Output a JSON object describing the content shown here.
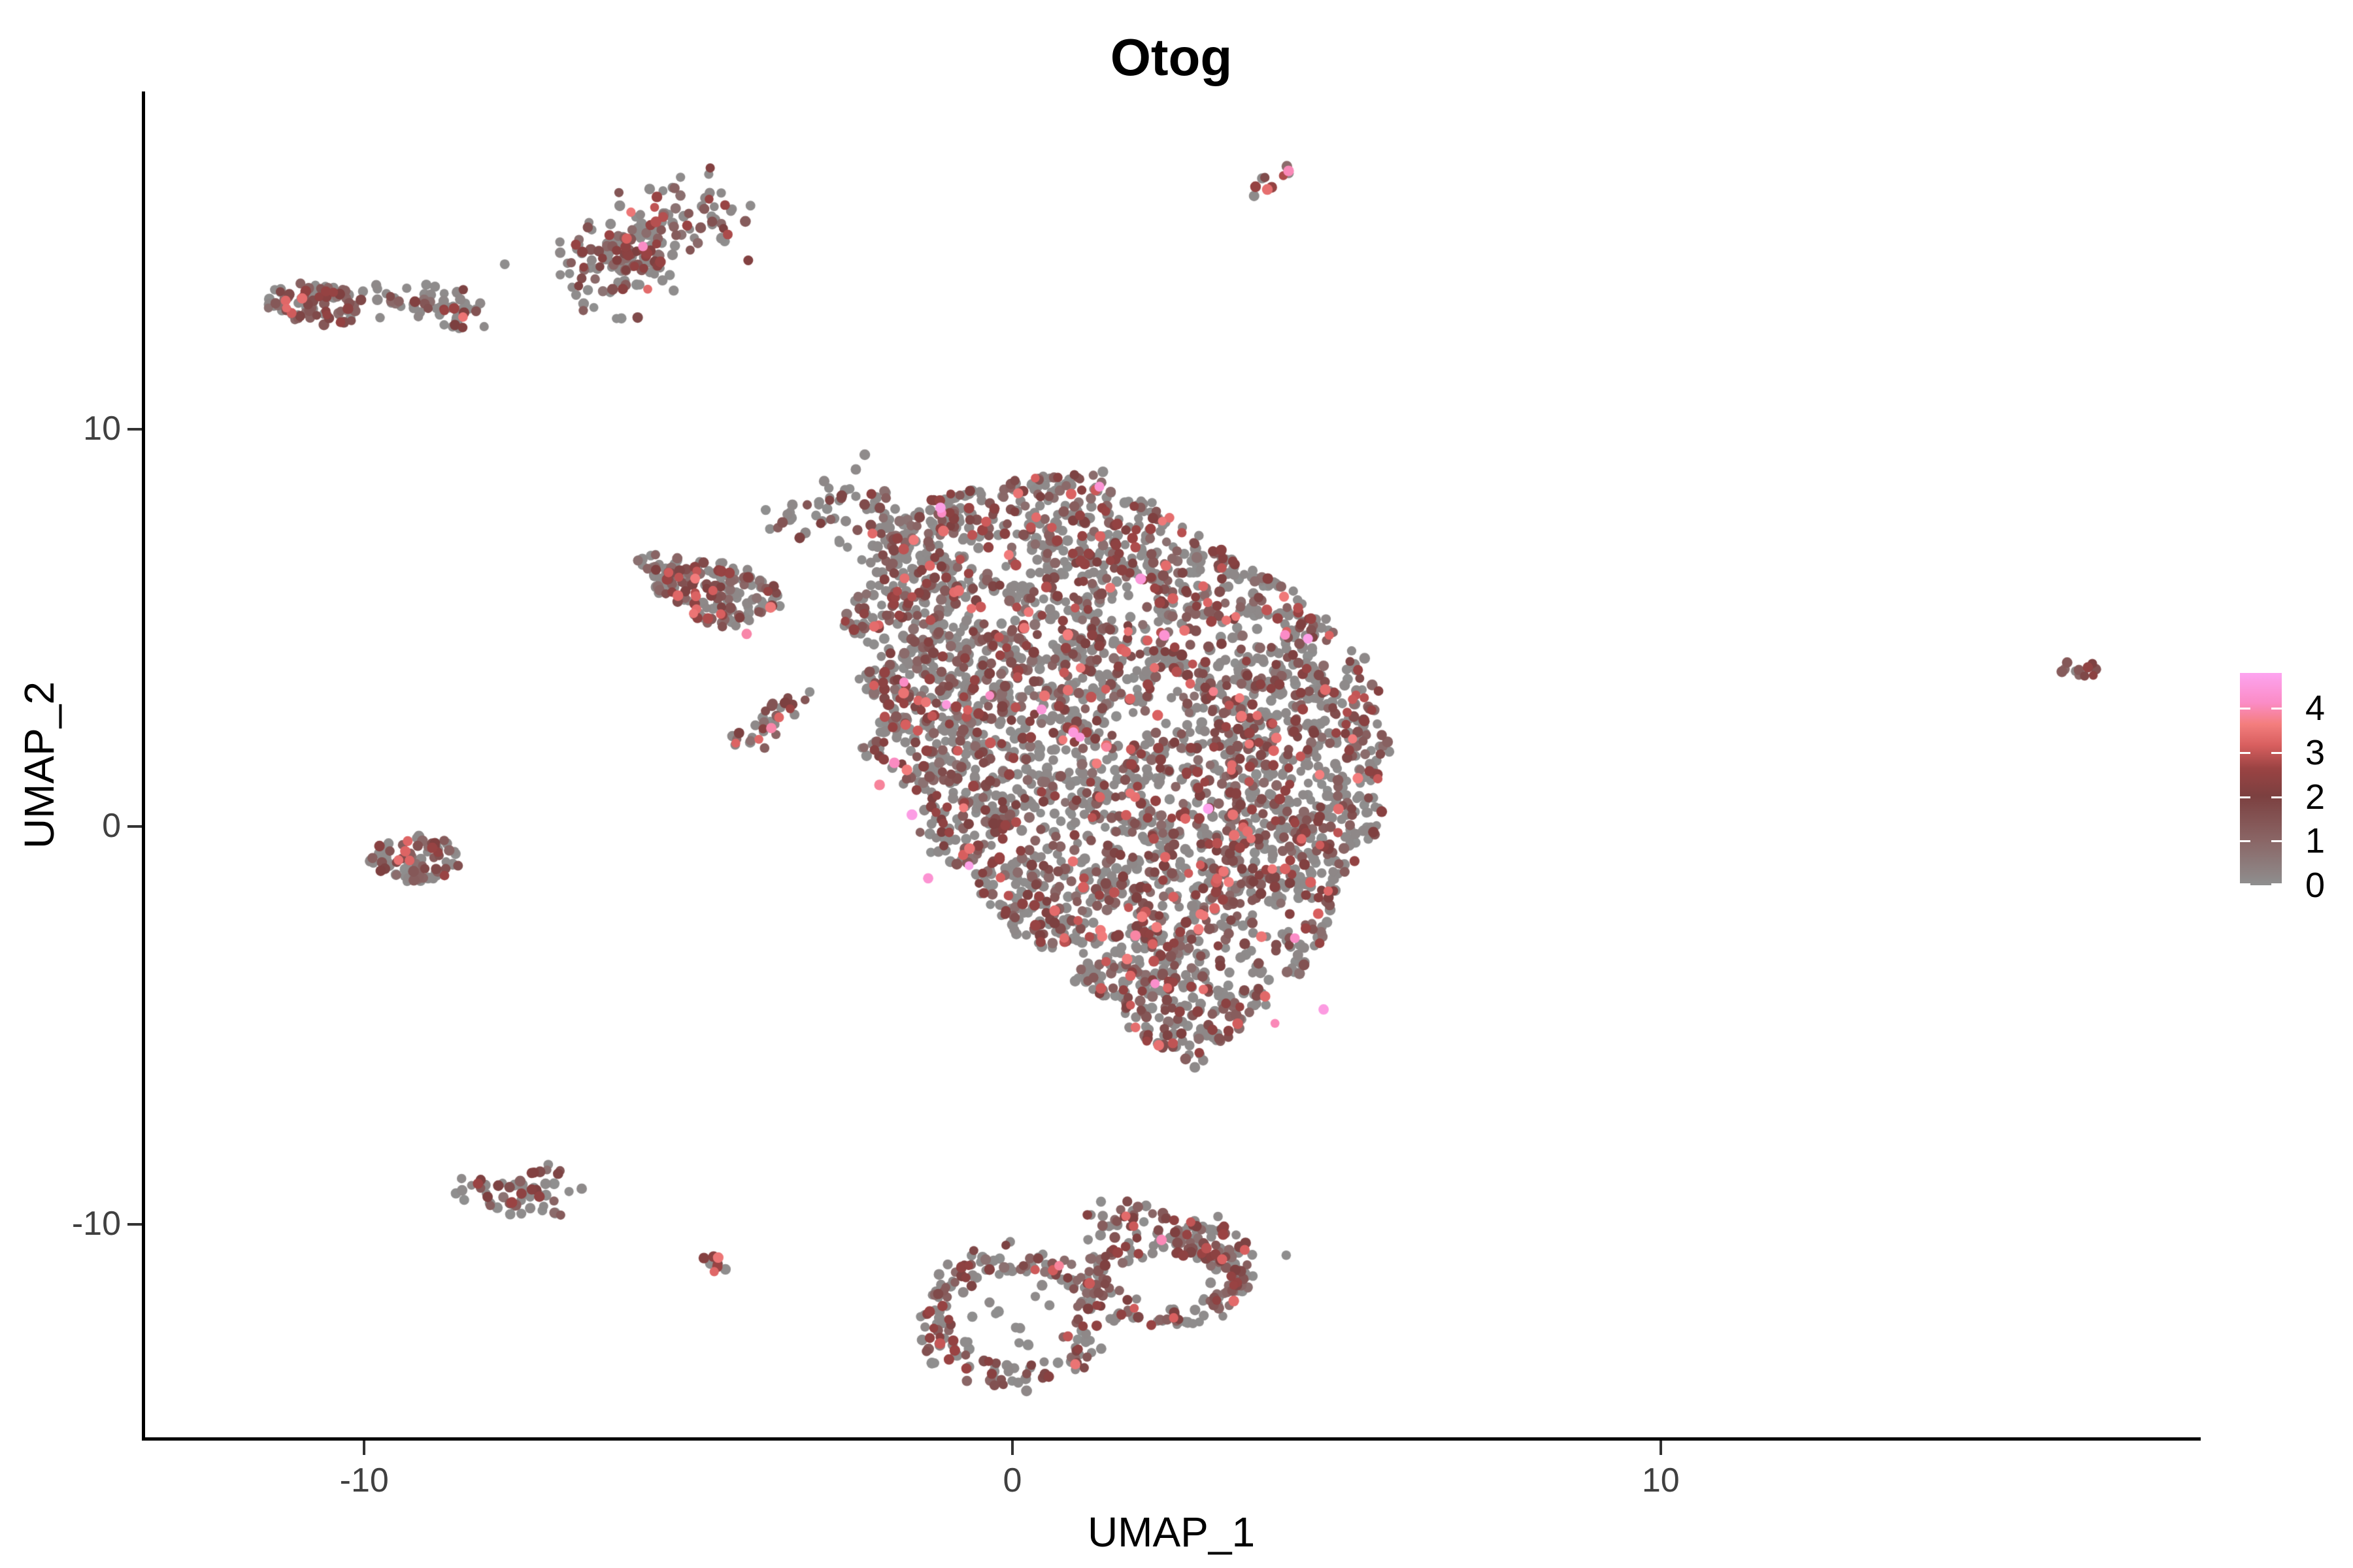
{
  "title": "Otog",
  "axes": {
    "x_label": "UMAP_1",
    "y_label": "UMAP_2",
    "x_ticks": [
      -10,
      0,
      10
    ],
    "y_ticks": [
      -10,
      0,
      10
    ]
  },
  "legend": {
    "ticks": [
      0,
      1,
      2,
      3,
      4
    ],
    "max_value": 4.8
  },
  "colors": {
    "background": "#ffffff",
    "axis": "#000000",
    "tick_text": "#404040",
    "gradient_stops": [
      [
        0.0,
        "#8f8f8f"
      ],
      [
        0.21,
        "#8a6666"
      ],
      [
        0.42,
        "#7c4040"
      ],
      [
        0.55,
        "#9a4343"
      ],
      [
        0.66,
        "#d85f5f"
      ],
      [
        0.76,
        "#f47e7e"
      ],
      [
        0.86,
        "#fb8cc6"
      ],
      [
        1.0,
        "#fda4f0"
      ]
    ]
  },
  "chart_data": {
    "type": "scatter",
    "title": "Otog",
    "xlabel": "UMAP_1",
    "ylabel": "UMAP_2",
    "xlim": [
      -13.4,
      18.3
    ],
    "ylim": [
      -15.4,
      18.5
    ],
    "legend_title_values": "expression 0 to 4.8",
    "grid": false,
    "point_radius_px": 7.5,
    "value_classes": {
      "gray": [
        0.0,
        0.04
      ],
      "low": [
        0.14,
        0.34
      ],
      "mid": [
        0.34,
        0.55
      ],
      "high": [
        0.58,
        0.76
      ],
      "vhigh": [
        0.8,
        1.0
      ]
    },
    "default_mix": {
      "gray": 0.55,
      "low": 0.22,
      "mid": 0.17,
      "high": 0.055,
      "vhigh": 0.005
    },
    "clusters": [
      {
        "name": "top-left-tip",
        "kind": "ellipse",
        "cx": -10.75,
        "cy": 13.15,
        "rx": 0.8,
        "ry": 0.52,
        "rot": -8,
        "n": 95,
        "mix": {
          "gray": 0.38,
          "low": 0.3,
          "mid": 0.26,
          "high": 0.06,
          "vhigh": 0
        },
        "accents": [
          [
            -11.2,
            13.05,
            0.7
          ]
        ]
      },
      {
        "name": "top-left-band",
        "kind": "band",
        "pts": [
          [
            -9.9,
            13.35
          ],
          [
            -9.3,
            13.2
          ],
          [
            -8.7,
            12.95
          ],
          [
            -8.1,
            13.0
          ]
        ],
        "w": 0.22,
        "n": 62,
        "mix": {
          "gray": 0.72,
          "low": 0.18,
          "mid": 0.09,
          "high": 0.01,
          "vhigh": 0
        }
      },
      {
        "name": "top-crescent-arc",
        "kind": "band",
        "pts": [
          [
            -6.6,
            13.35
          ],
          [
            -6.25,
            13.75
          ],
          [
            -5.95,
            14.3
          ],
          [
            -5.55,
            14.85
          ],
          [
            -5.0,
            15.35
          ],
          [
            -4.5,
            15.7
          ]
        ],
        "w": 0.5,
        "n": 150,
        "mix": {
          "gray": 0.5,
          "low": 0.25,
          "mid": 0.2,
          "high": 0.05,
          "vhigh": 0
        },
        "accents": [
          [
            -5.7,
            14.6,
            0.86
          ],
          [
            -5.95,
            14.8,
            0.66
          ]
        ]
      },
      {
        "name": "top-crescent-lobe",
        "kind": "ellipse",
        "cx": -5.85,
        "cy": 14.45,
        "rx": 0.55,
        "ry": 0.5,
        "rot": 0,
        "n": 55,
        "mix": {
          "gray": 0.48,
          "low": 0.27,
          "mid": 0.22,
          "high": 0.03,
          "vhigh": 0
        }
      },
      {
        "name": "top-streak",
        "kind": "band",
        "pts": [
          [
            3.78,
            15.9
          ],
          [
            4.35,
            16.8
          ]
        ],
        "w": 0.13,
        "n": 9,
        "mix": {
          "gray": 0.4,
          "low": 0.25,
          "mid": 0.3,
          "high": 0.05,
          "vhigh": 0
        },
        "accents": [
          [
            4.26,
            16.5,
            0.84
          ]
        ]
      },
      {
        "name": "arm-cluster",
        "kind": "ellipse",
        "cx": -4.55,
        "cy": 5.85,
        "rx": 1.05,
        "ry": 0.78,
        "rot": -28,
        "n": 165,
        "mix": {
          "gray": 0.5,
          "low": 0.25,
          "mid": 0.2,
          "high": 0.05,
          "vhigh": 0
        },
        "accents": [
          [
            -4.1,
            4.85,
            0.82
          ],
          [
            -4.5,
            5.35,
            0.66
          ]
        ]
      },
      {
        "name": "arm-tip",
        "kind": "ellipse",
        "cx": -5.4,
        "cy": 6.55,
        "rx": 0.42,
        "ry": 0.3,
        "rot": -30,
        "n": 28,
        "mix": {
          "gray": 0.5,
          "low": 0.28,
          "mid": 0.22,
          "high": 0,
          "vhigh": 0
        }
      },
      {
        "name": "hook",
        "kind": "band",
        "pts": [
          [
            -3.35,
            7.25
          ],
          [
            -3.1,
            7.95
          ],
          [
            -2.65,
            8.55
          ],
          [
            -2.2,
            8.5
          ],
          [
            -1.95,
            7.95
          ],
          [
            -2.0,
            7.3
          ],
          [
            -2.3,
            6.85
          ]
        ],
        "w": 0.28,
        "n": 62,
        "mix": {
          "gray": 0.68,
          "low": 0.2,
          "mid": 0.11,
          "high": 0.01,
          "vhigh": 0
        }
      },
      {
        "name": "mini-streak",
        "kind": "band",
        "pts": [
          [
            -4.15,
            1.95
          ],
          [
            -3.25,
            3.5
          ]
        ],
        "w": 0.2,
        "n": 30,
        "mix": {
          "gray": 0.35,
          "low": 0.3,
          "mid": 0.3,
          "high": 0.05,
          "vhigh": 0
        },
        "accents": [
          [
            -3.6,
            2.75,
            0.68
          ],
          [
            -3.72,
            2.48,
            0.82
          ]
        ]
      },
      {
        "name": "main-blob",
        "kind": "polygon",
        "pts": [
          [
            -2.65,
            5.1
          ],
          [
            -2.1,
            6.3
          ],
          [
            -2.3,
            7.3
          ],
          [
            -1.6,
            8.1
          ],
          [
            -0.6,
            8.5
          ],
          [
            0.5,
            8.8
          ],
          [
            1.3,
            8.85
          ],
          [
            1.9,
            8.3
          ],
          [
            2.6,
            7.6
          ],
          [
            3.3,
            6.9
          ],
          [
            4.1,
            6.1
          ],
          [
            4.8,
            5.3
          ],
          [
            5.35,
            4.5
          ],
          [
            5.7,
            3.6
          ],
          [
            5.6,
            2.7
          ],
          [
            5.85,
            1.9
          ],
          [
            5.55,
            1.0
          ],
          [
            5.75,
            0.2
          ],
          [
            5.35,
            -0.6
          ],
          [
            5.0,
            -1.4
          ],
          [
            5.05,
            -2.3
          ],
          [
            4.65,
            -3.2
          ],
          [
            4.1,
            -4.0
          ],
          [
            3.7,
            -4.8
          ],
          [
            3.3,
            -5.6
          ],
          [
            2.7,
            -6.0
          ],
          [
            2.1,
            -5.5
          ],
          [
            1.7,
            -4.6
          ],
          [
            1.1,
            -4.0
          ],
          [
            0.55,
            -3.2
          ],
          [
            0.0,
            -2.6
          ],
          [
            -0.4,
            -1.7
          ],
          [
            -1.0,
            -1.0
          ],
          [
            -1.5,
            -0.3
          ],
          [
            -1.25,
            0.6
          ],
          [
            -1.8,
            1.3
          ],
          [
            -2.3,
            2.1
          ],
          [
            -1.9,
            2.9
          ],
          [
            -2.4,
            3.7
          ],
          [
            -2.0,
            4.4
          ]
        ],
        "n": 3400,
        "mix": null,
        "accents": [
          [
            -0.35,
            3.3,
            0.86
          ],
          [
            0.45,
            2.95,
            0.92
          ],
          [
            -1.55,
            0.3,
            0.96
          ],
          [
            2.2,
            -3.95,
            0.88
          ],
          [
            4.8,
            -4.6,
            0.95
          ],
          [
            1.45,
            2.0,
            0.8
          ],
          [
            3.1,
            3.4,
            0.78
          ],
          [
            0.25,
            5.4,
            0.74
          ],
          [
            -2.05,
            1.05,
            0.8
          ],
          [
            3.4,
            0.3,
            0.72
          ],
          [
            2.9,
            -2.2,
            0.74
          ],
          [
            0.8,
            -2.8,
            0.7
          ],
          [
            1.75,
            4.4,
            0.68
          ],
          [
            -0.9,
            5.9,
            0.7
          ],
          [
            4.6,
            -1.4,
            0.66
          ],
          [
            -1.3,
            -1.3,
            0.9
          ],
          [
            4.05,
            -4.95,
            0.84
          ]
        ]
      },
      {
        "name": "left-small",
        "kind": "ellipse",
        "cx": -9.2,
        "cy": -0.8,
        "rx": 0.72,
        "ry": 0.58,
        "rot": 10,
        "n": 82,
        "mix": {
          "gray": 0.52,
          "low": 0.25,
          "mid": 0.2,
          "high": 0.03,
          "vhigh": 0
        },
        "accents": [
          [
            -9.3,
            -0.85,
            0.68
          ]
        ]
      },
      {
        "name": "right-small",
        "kind": "ellipse",
        "cx": 16.45,
        "cy": 3.95,
        "rx": 0.38,
        "ry": 0.28,
        "rot": -35,
        "n": 13,
        "mix": {
          "gray": 0.22,
          "low": 0.3,
          "mid": 0.43,
          "high": 0.05,
          "vhigh": 0
        }
      },
      {
        "name": "bottom-left-band",
        "kind": "band",
        "pts": [
          [
            -8.45,
            -8.95
          ],
          [
            -8.05,
            -9.25
          ],
          [
            -7.55,
            -9.45
          ],
          [
            -7.15,
            -9.15
          ],
          [
            -6.9,
            -8.85
          ]
        ],
        "w": 0.26,
        "n": 60,
        "mix": {
          "gray": 0.55,
          "low": 0.25,
          "mid": 0.19,
          "high": 0.01,
          "vhigh": 0
        }
      },
      {
        "name": "tiny-cluster",
        "kind": "ellipse",
        "cx": -4.65,
        "cy": -11.05,
        "rx": 0.3,
        "ry": 0.26,
        "rot": 0,
        "n": 8,
        "mix": {
          "gray": 0.25,
          "low": 0.2,
          "mid": 0.5,
          "high": 0.05,
          "vhigh": 0
        }
      },
      {
        "name": "bottom-ring-left",
        "kind": "ring",
        "cx": 0.0,
        "cy": -12.4,
        "rx": 1.2,
        "ry": 1.5,
        "w": 0.14,
        "n": 185,
        "mix": {
          "gray": 0.55,
          "low": 0.25,
          "mid": 0.18,
          "high": 0.02,
          "vhigh": 0
        },
        "accents": [
          [
            0.35,
            -11.15,
            0.64
          ],
          [
            0.72,
            -11.05,
            0.8
          ]
        ]
      },
      {
        "name": "bottom-ring-left-inner",
        "kind": "ellipse",
        "cx": 0.0,
        "cy": -12.4,
        "rx": 0.75,
        "ry": 0.95,
        "rot": 0,
        "n": 10,
        "mix": {
          "gray": 1,
          "low": 0,
          "mid": 0,
          "high": 0,
          "vhigh": 0
        }
      },
      {
        "name": "bottom-ring-right",
        "kind": "ring",
        "cx": 2.35,
        "cy": -11.45,
        "rx": 1.05,
        "ry": 0.95,
        "w": 0.15,
        "n": 160,
        "mix": {
          "gray": 0.5,
          "low": 0.27,
          "mid": 0.2,
          "high": 0.03,
          "vhigh": 0
        },
        "accents": [
          [
            2.3,
            -10.4,
            0.84
          ]
        ]
      },
      {
        "name": "bottom-right-arc",
        "kind": "band",
        "pts": [
          [
            1.2,
            -10.15
          ],
          [
            1.8,
            -9.75
          ],
          [
            2.6,
            -10.0
          ],
          [
            3.3,
            -10.5
          ],
          [
            3.6,
            -11.1
          ]
        ],
        "w": 0.28,
        "n": 80,
        "mix": {
          "gray": 0.5,
          "low": 0.27,
          "mid": 0.2,
          "high": 0.03,
          "vhigh": 0
        },
        "accents": [
          [
            1.75,
            -9.8,
            0.7
          ],
          [
            2.75,
            -9.95,
            0.62
          ]
        ]
      }
    ]
  }
}
